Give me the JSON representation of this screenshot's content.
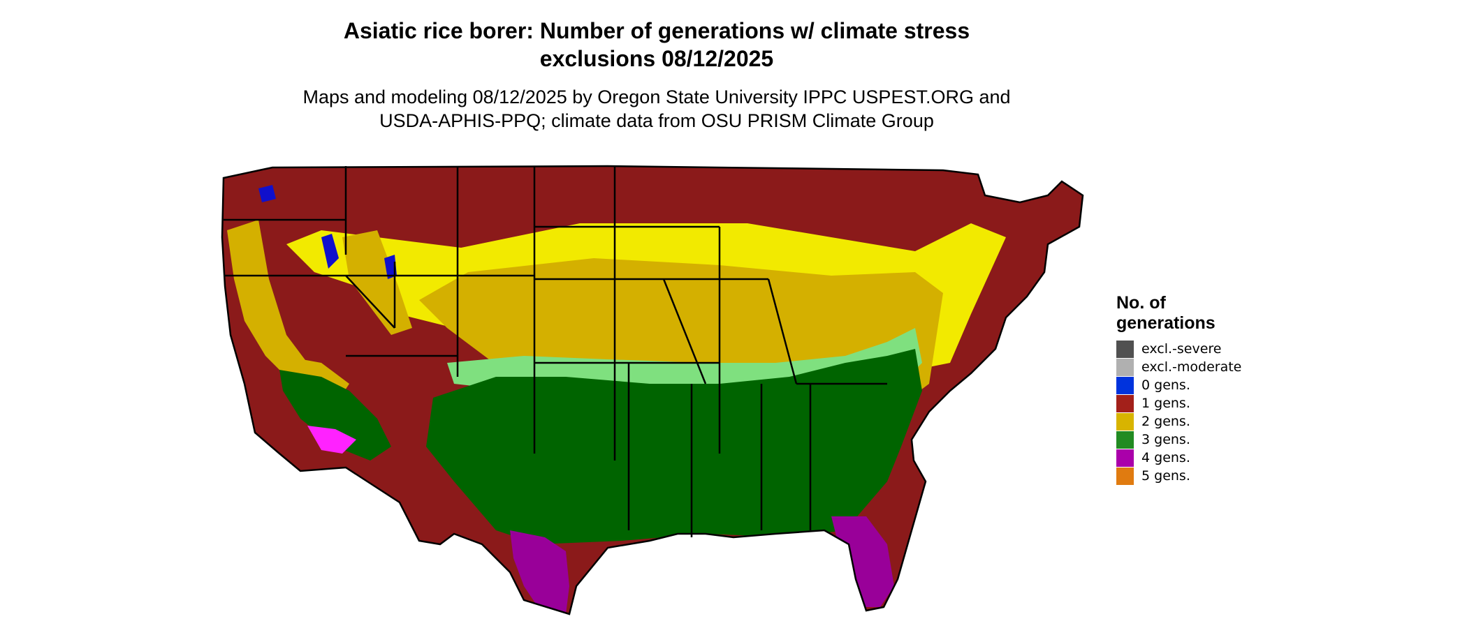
{
  "title_line1": "Asiatic rice borer: Number of generations w/ climate stress",
  "title_line2": "exclusions 08/12/2025",
  "subtitle_line1": "Maps and modeling 08/12/2025 by Oregon State University IPPC USPEST.ORG and",
  "subtitle_line2": "USDA-APHIS-PPQ; climate data from OSU PRISM Climate Group",
  "legend": {
    "title_line1": "No. of",
    "title_line2": "generations",
    "items": [
      {
        "label": "excl.-severe",
        "color": "#505050"
      },
      {
        "label": "excl.-moderate",
        "color": "#b0b0b0"
      },
      {
        "label": "0 gens.",
        "color": "#0033dd"
      },
      {
        "label": "1 gens.",
        "color": "#a3201a"
      },
      {
        "label": "2 gens.",
        "color": "#d8b400"
      },
      {
        "label": "3 gens.",
        "color": "#228b22"
      },
      {
        "label": "4 gens.",
        "color": "#aa00aa"
      },
      {
        "label": "5 gens.",
        "color": "#e07b10"
      }
    ]
  },
  "map_colors": {
    "gens_1": "#8b1a1a",
    "gens_2": "#d4b000",
    "gens_2_light": "#f2ea00",
    "gens_3": "#006400",
    "gens_3_light": "#7fe07f",
    "gens_4": "#990099",
    "gens_4_light": "#ff22ff",
    "gens_0": "#1010cc",
    "boundary": "#000000"
  }
}
